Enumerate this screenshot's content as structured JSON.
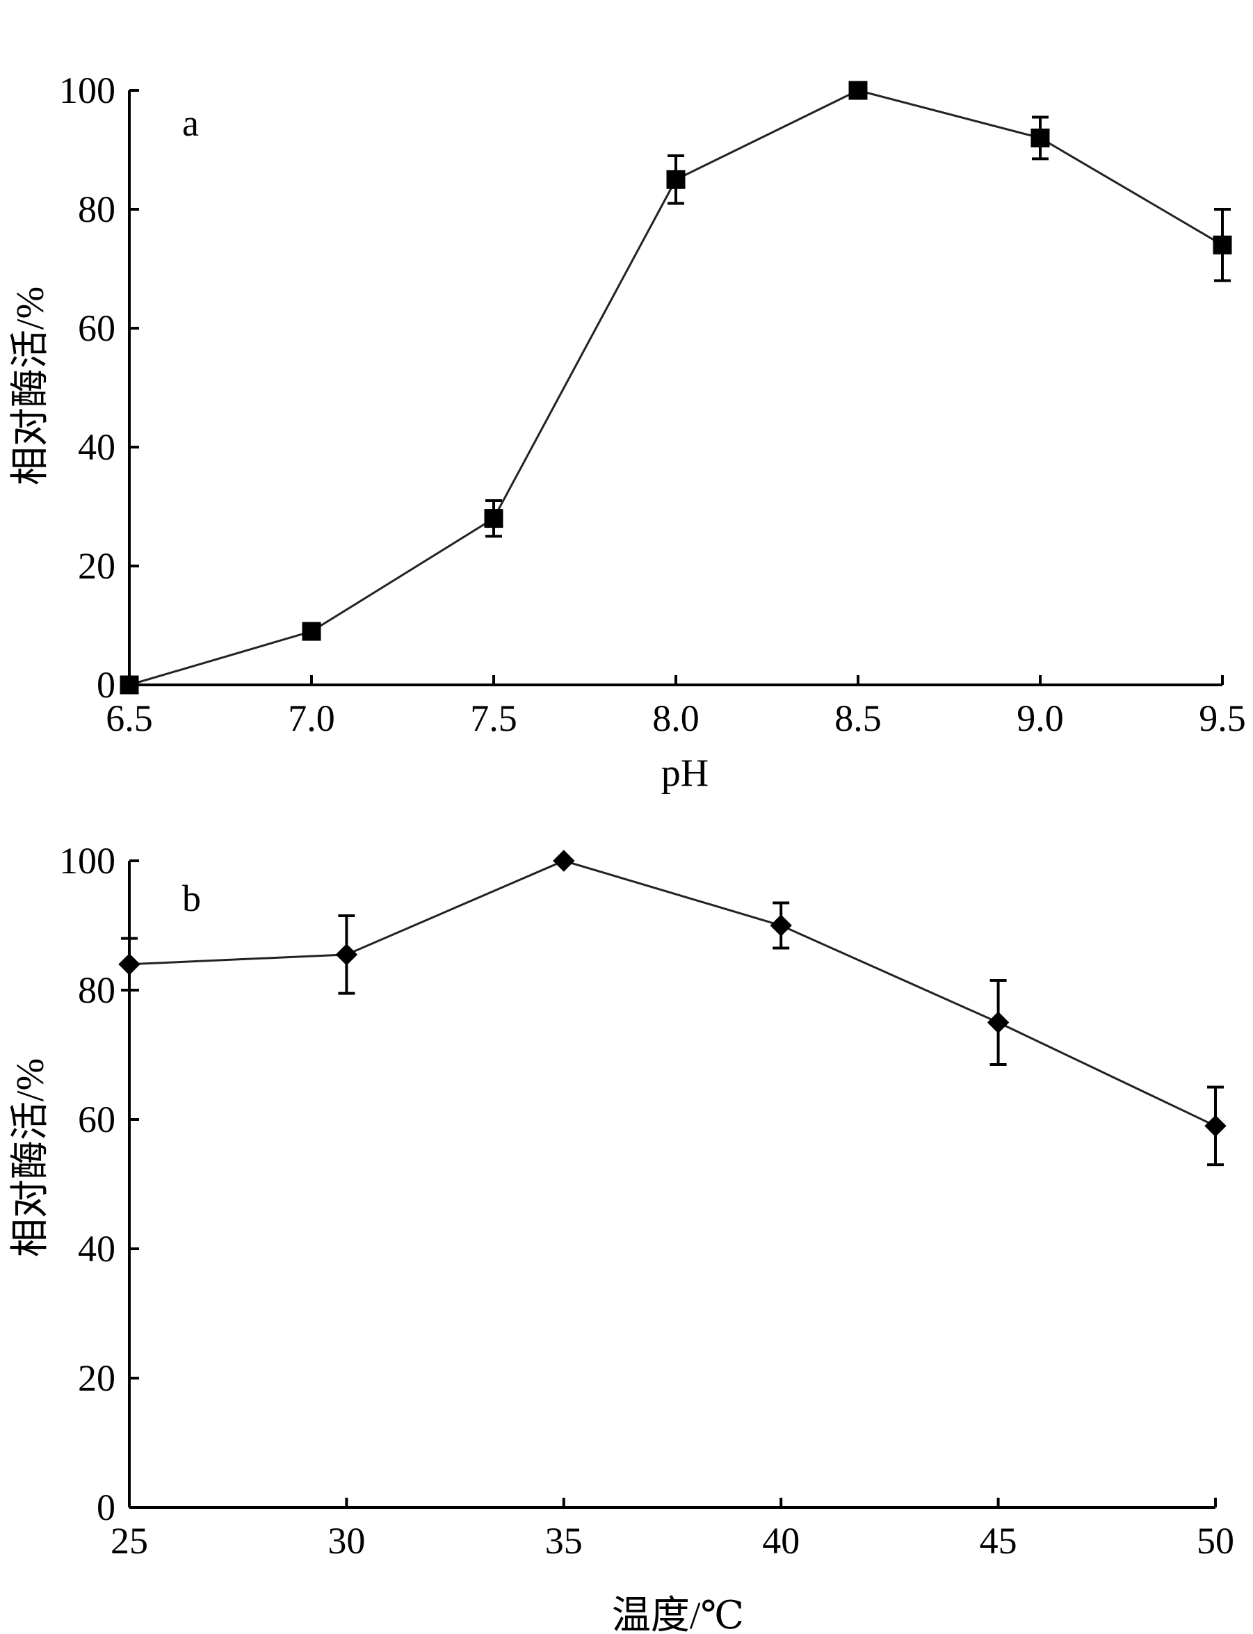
{
  "chart_data": [
    {
      "id": "a",
      "type": "line",
      "panel_label": "a",
      "xlabel": "pH",
      "ylabel": "相对酶活/%",
      "x": [
        6.5,
        7.0,
        7.5,
        8.0,
        8.5,
        9.0,
        9.5
      ],
      "x_ticks": [
        "6.5",
        "7.0",
        "7.5",
        "8.0",
        "8.5",
        "9.0",
        "9.5"
      ],
      "y_ticks": [
        "0",
        "20",
        "40",
        "60",
        "80",
        "100"
      ],
      "xlim": [
        6.5,
        9.5
      ],
      "ylim": [
        0,
        100
      ],
      "marker": "square",
      "grid": false,
      "series": [
        {
          "values": [
            0,
            9,
            28,
            85,
            100,
            92,
            74
          ],
          "error": [
            0,
            0,
            3,
            4,
            0,
            3.5,
            6
          ]
        }
      ]
    },
    {
      "id": "b",
      "type": "line",
      "panel_label": "b",
      "xlabel": "温度/℃",
      "ylabel": "相对酶活/%",
      "x": [
        25,
        30,
        35,
        40,
        45,
        50
      ],
      "x_ticks": [
        "25",
        "30",
        "35",
        "40",
        "45",
        "50"
      ],
      "y_ticks": [
        "0",
        "20",
        "40",
        "60",
        "80",
        "100"
      ],
      "xlim": [
        25,
        50
      ],
      "ylim": [
        0,
        100
      ],
      "marker": "diamond",
      "grid": false,
      "series": [
        {
          "values": [
            84,
            85.5,
            100,
            90,
            75,
            59
          ],
          "error": [
            4,
            6,
            0,
            3.5,
            6.5,
            6
          ]
        }
      ]
    }
  ]
}
